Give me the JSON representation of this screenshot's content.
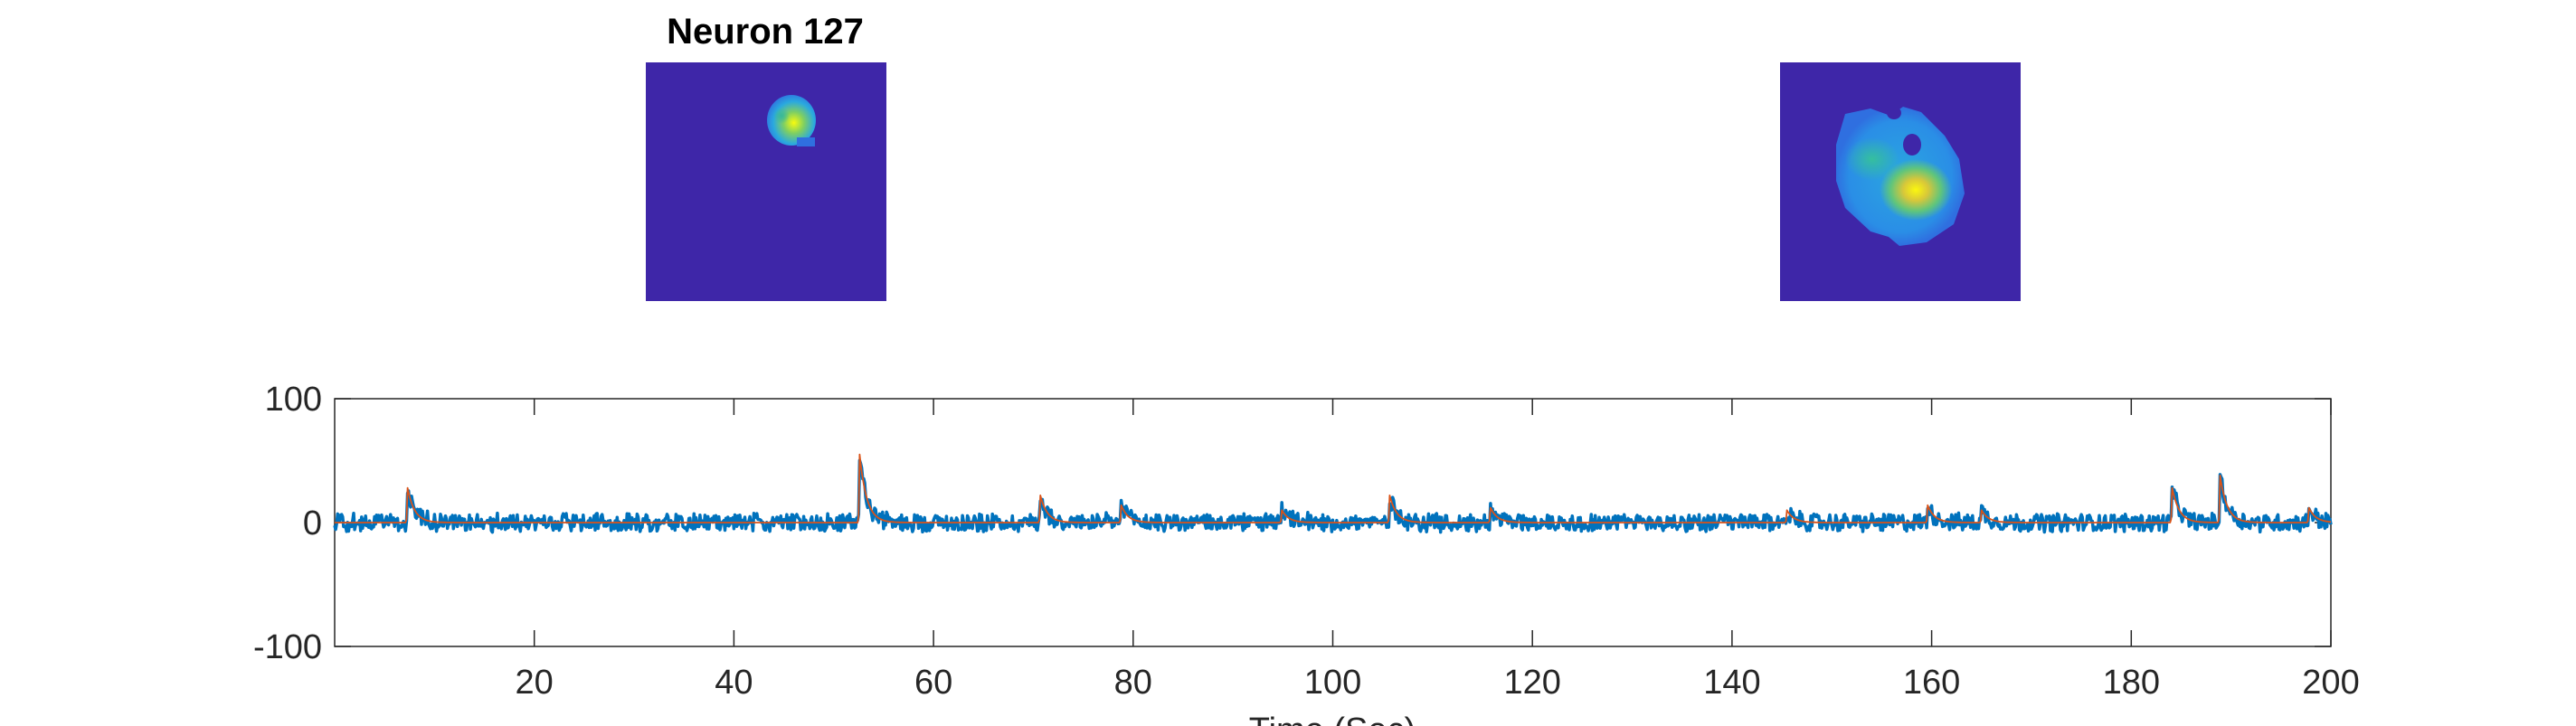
{
  "title": "Neuron 127",
  "colors": {
    "background_map": "#3e26a8",
    "trace_raw": "#0072bd",
    "trace_fit": "#d95319",
    "axis": "#262626"
  },
  "chart_data": {
    "type": "line",
    "xlabel": "Time (Sec)",
    "ylabel": "",
    "xlim": [
      0,
      200
    ],
    "ylim": [
      -100,
      100
    ],
    "xticks": [
      20,
      40,
      60,
      80,
      100,
      120,
      140,
      160,
      180,
      200
    ],
    "yticks": [
      -100,
      0,
      100
    ],
    "grid": false,
    "baseline_noise": 3,
    "events": [
      {
        "t": 7.3,
        "amp": 28
      },
      {
        "t": 52.6,
        "amp": 55
      },
      {
        "t": 70.7,
        "amp": 22
      },
      {
        "t": 78.8,
        "amp": 14
      },
      {
        "t": 94.9,
        "amp": 10
      },
      {
        "t": 105.7,
        "amp": 22
      },
      {
        "t": 115.8,
        "amp": 12
      },
      {
        "t": 145.5,
        "amp": 10
      },
      {
        "t": 159.6,
        "amp": 14
      },
      {
        "t": 165.0,
        "amp": 10
      },
      {
        "t": 184.1,
        "amp": 28
      },
      {
        "t": 188.9,
        "amp": 38
      },
      {
        "t": 197.8,
        "amp": 12
      }
    ],
    "images": [
      {
        "name": "spatial-footprint-full",
        "description": "full field of view"
      },
      {
        "name": "spatial-footprint-zoom",
        "description": "zoomed footprint"
      }
    ]
  }
}
